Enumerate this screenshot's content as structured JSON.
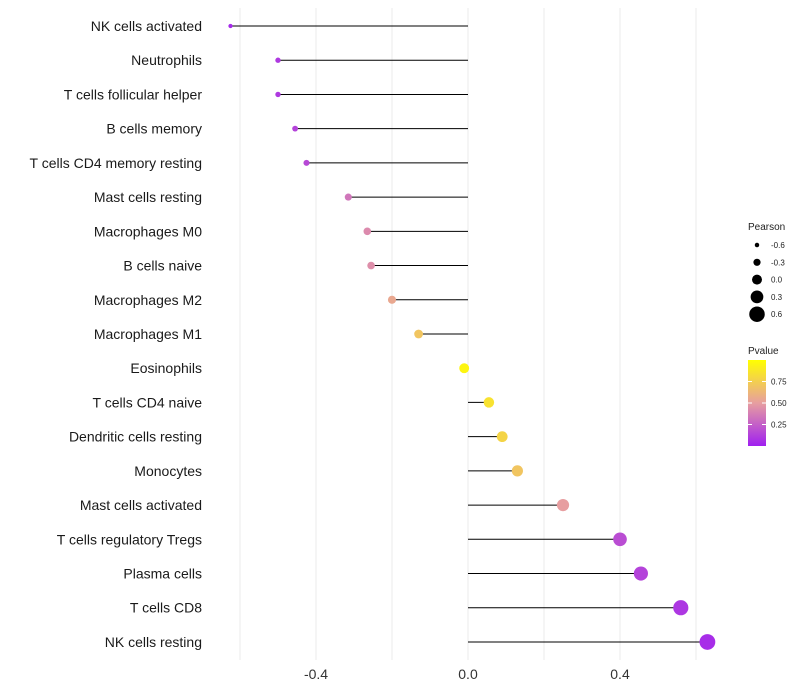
{
  "chart_data": {
    "type": "lollipop",
    "title": "",
    "xlabel": "",
    "ylabel": "",
    "xlim": [
      -0.65,
      0.66
    ],
    "x_ticks": [
      -0.4,
      0.0,
      0.4
    ],
    "x_tick_labels": [
      "-0.4",
      "0.0",
      "0.4"
    ],
    "categories": [
      "NK cells activated",
      "Neutrophils",
      "T cells follicular helper",
      "B cells memory",
      "T cells CD4 memory resting",
      "Mast cells resting",
      "Macrophages M0",
      "B cells naive",
      "Macrophages M2",
      "Macrophages M1",
      "Eosinophils",
      "T cells CD4 naive",
      "Dendritic cells resting",
      "Monocytes",
      "Mast cells activated",
      "T cells regulatory  Tregs",
      "Plasma cells",
      "T cells CD8",
      "NK cells resting"
    ],
    "pearson": [
      -0.625,
      -0.5,
      -0.5,
      -0.455,
      -0.425,
      -0.315,
      -0.265,
      -0.255,
      -0.2,
      -0.13,
      -0.01,
      0.055,
      0.09,
      0.13,
      0.25,
      0.4,
      0.455,
      0.56,
      0.63
    ],
    "pvalue": [
      0.04,
      0.1,
      0.1,
      0.14,
      0.16,
      0.34,
      0.42,
      0.44,
      0.55,
      0.7,
      0.95,
      0.85,
      0.78,
      0.7,
      0.5,
      0.18,
      0.14,
      0.09,
      0.05
    ],
    "size_legend": {
      "title": "Pearson",
      "values": [
        -0.6,
        -0.3,
        0.0,
        0.3,
        0.6
      ],
      "labels": [
        "-0.6",
        "-0.3",
        "0.0",
        "0.3",
        "0.6"
      ]
    },
    "color_legend": {
      "title": "Pvalue",
      "low_color": "#a020f0",
      "mid_color": "#e79ea0",
      "high_color": "#ffff00",
      "range": [
        0.0,
        1.0
      ],
      "ticks": [
        0.25,
        0.5,
        0.75
      ],
      "tick_labels": [
        "0.25",
        "0.50",
        "0.75"
      ]
    }
  }
}
